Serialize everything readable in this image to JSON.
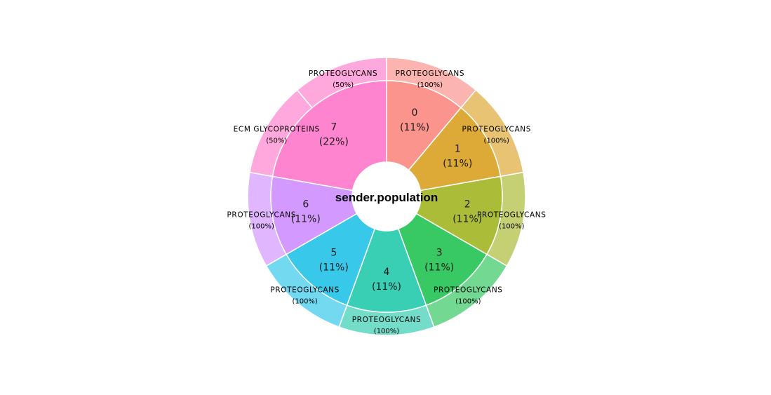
{
  "chart_data": {
    "type": "pie",
    "subtype": "sunburst-donut",
    "title": "sender.population",
    "inner_ring": [
      {
        "category": "0",
        "percent_label": "(11%)",
        "value": 1,
        "color": "#F8766D"
      },
      {
        "category": "1",
        "percent_label": "(11%)",
        "value": 1,
        "color": "#D39200"
      },
      {
        "category": "2",
        "percent_label": "(11%)",
        "value": 1,
        "color": "#93AA00"
      },
      {
        "category": "3",
        "percent_label": "(11%)",
        "value": 1,
        "color": "#00BA38"
      },
      {
        "category": "4",
        "percent_label": "(11%)",
        "value": 1,
        "color": "#00C19F"
      },
      {
        "category": "5",
        "percent_label": "(11%)",
        "value": 1,
        "color": "#00B9E3"
      },
      {
        "category": "6",
        "percent_label": "(11%)",
        "value": 1,
        "color": "#C77CFF"
      },
      {
        "category": "7",
        "percent_label": "(22%)",
        "value": 2,
        "color": "#FF61C3"
      }
    ],
    "outer_ring": [
      {
        "parent": "0",
        "category": "PROTEOGLYCANS",
        "percent_label": "(100%)",
        "value": 1
      },
      {
        "parent": "1",
        "category": "PROTEOGLYCANS",
        "percent_label": "(100%)",
        "value": 1
      },
      {
        "parent": "2",
        "category": "PROTEOGLYCANS",
        "percent_label": "(100%)",
        "value": 1
      },
      {
        "parent": "3",
        "category": "PROTEOGLYCANS",
        "percent_label": "(100%)",
        "value": 1
      },
      {
        "parent": "4",
        "category": "PROTEOGLYCANS",
        "percent_label": "(100%)",
        "value": 1
      },
      {
        "parent": "5",
        "category": "PROTEOGLYCANS",
        "percent_label": "(100%)",
        "value": 1
      },
      {
        "parent": "6",
        "category": "PROTEOGLYCANS",
        "percent_label": "(100%)",
        "value": 1
      },
      {
        "parent": "7",
        "category": "ECM GLYCOPROTEINS",
        "percent_label": "(50%)",
        "value": 1
      },
      {
        "parent": "7",
        "category": "PROTEOGLYCANS",
        "percent_label": "(50%)",
        "value": 1
      }
    ],
    "legend": "none"
  }
}
